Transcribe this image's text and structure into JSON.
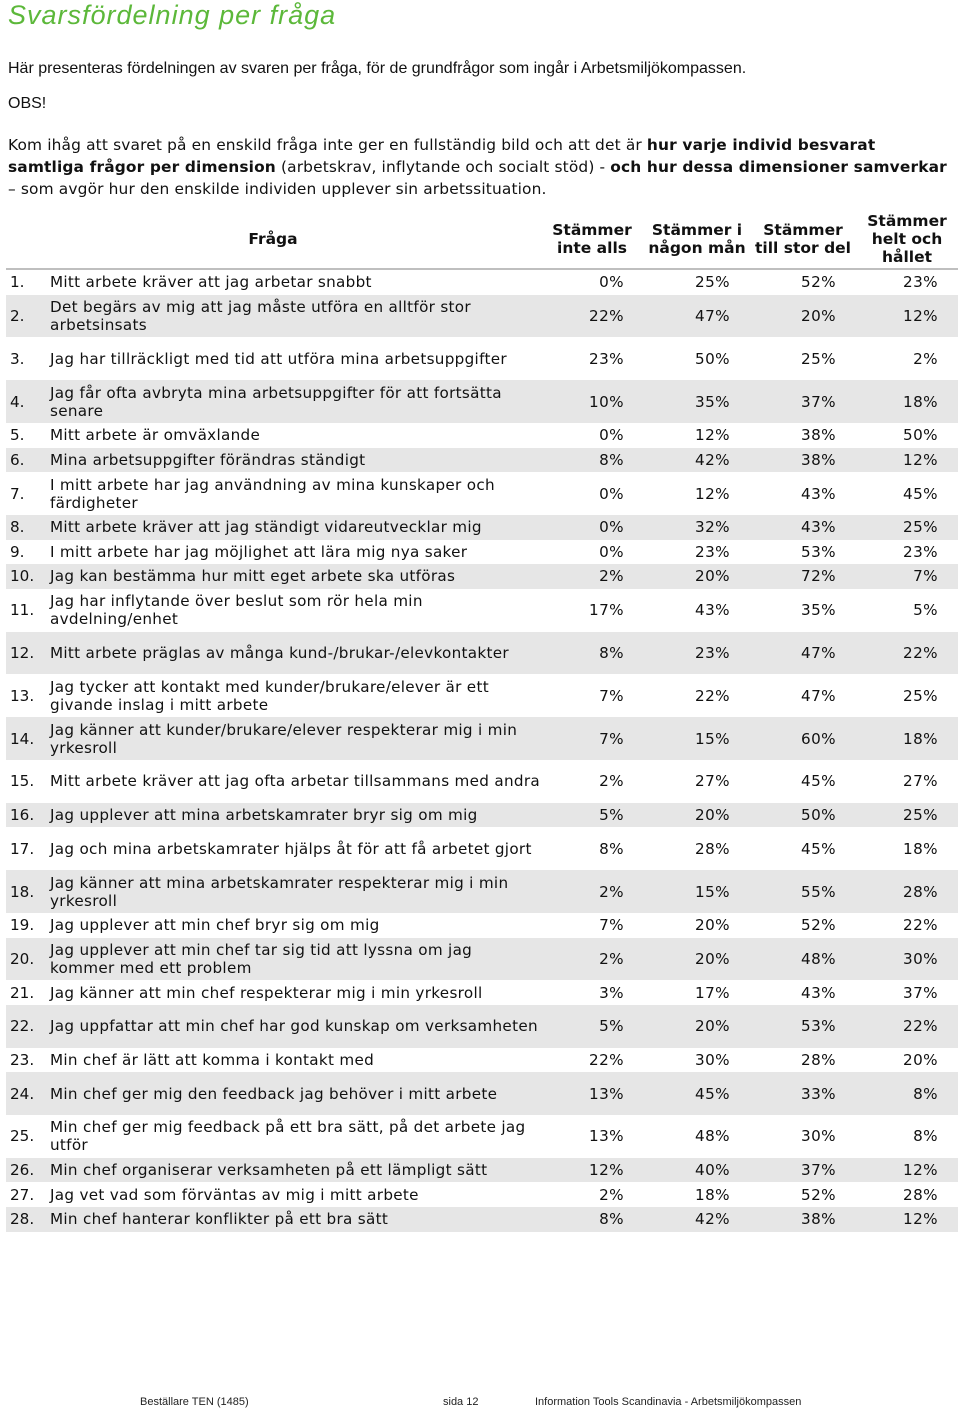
{
  "title": "Svarsfördelning per fråga",
  "intro": "Här presenteras fördelningen av svaren per fråga, för de grundfrågor som ingår i Arbetsmiljökompassen.",
  "obs": "OBS!",
  "note": {
    "p1": "Kom ihåg att svaret på en enskild fråga inte ger en fullständig bild och att det är ",
    "b1": "hur varje individ besvarat samtliga frågor per dimension",
    "p2": " (arbetskrav, inflytande och socialt stöd) - ",
    "b2": "och hur dessa dimensioner samverkar",
    "p3": " – som avgör hur den enskilde individen upplever sin arbetssituation."
  },
  "table": {
    "headers": [
      "Fråga",
      "Stämmer inte alls",
      "Stämmer i någon mån",
      "Stämmer till stor del",
      "Stämmer helt och hållet"
    ],
    "rows": [
      {
        "num": "1.",
        "text": "Mitt arbete kräver att jag arbetar snabbt",
        "v": [
          "0%",
          "25%",
          "52%",
          "23%"
        ]
      },
      {
        "num": "2.",
        "text": "Det begärs av mig att jag måste utföra en alltför stor arbetsinsats",
        "v": [
          "22%",
          "47%",
          "20%",
          "12%"
        ]
      },
      {
        "num": "3.",
        "text": "Jag har tillräckligt med tid att utföra mina arbetsuppgifter",
        "v": [
          "23%",
          "50%",
          "25%",
          "2%"
        ]
      },
      {
        "num": "4.",
        "text": "Jag får ofta avbryta mina arbetsuppgifter för att fortsätta senare",
        "v": [
          "10%",
          "35%",
          "37%",
          "18%"
        ]
      },
      {
        "num": "5.",
        "text": "Mitt arbete är omväxlande",
        "v": [
          "0%",
          "12%",
          "38%",
          "50%"
        ]
      },
      {
        "num": "6.",
        "text": "Mina arbetsuppgifter förändras ständigt",
        "v": [
          "8%",
          "42%",
          "38%",
          "12%"
        ]
      },
      {
        "num": "7.",
        "text": "I mitt arbete har jag användning av mina kunskaper och färdigheter",
        "v": [
          "0%",
          "12%",
          "43%",
          "45%"
        ]
      },
      {
        "num": "8.",
        "text": "Mitt arbete kräver att jag ständigt vidareutvecklar mig",
        "v": [
          "0%",
          "32%",
          "43%",
          "25%"
        ]
      },
      {
        "num": "9.",
        "text": "I mitt arbete har jag möjlighet att lära mig nya saker",
        "v": [
          "0%",
          "23%",
          "53%",
          "23%"
        ]
      },
      {
        "num": "10.",
        "text": "Jag kan bestämma hur mitt eget arbete ska utföras",
        "v": [
          "2%",
          "20%",
          "72%",
          "7%"
        ]
      },
      {
        "num": "11.",
        "text": "Jag har inflytande över beslut som rör hela min avdelning/enhet",
        "v": [
          "17%",
          "43%",
          "35%",
          "5%"
        ]
      },
      {
        "num": "12.",
        "text": "Mitt arbete präglas av många kund-/brukar-/elevkontakter",
        "v": [
          "8%",
          "23%",
          "47%",
          "22%"
        ]
      },
      {
        "num": "13.",
        "text": "Jag tycker att kontakt med kunder/brukare/elever är ett givande inslag i mitt arbete",
        "v": [
          "7%",
          "22%",
          "47%",
          "25%"
        ]
      },
      {
        "num": "14.",
        "text": "Jag känner att kunder/brukare/elever respekterar mig i min yrkesroll",
        "v": [
          "7%",
          "15%",
          "60%",
          "18%"
        ]
      },
      {
        "num": "15.",
        "text": "Mitt arbete kräver att jag ofta arbetar tillsammans med andra",
        "v": [
          "2%",
          "27%",
          "45%",
          "27%"
        ]
      },
      {
        "num": "16.",
        "text": "Jag upplever att mina arbetskamrater bryr sig om mig",
        "v": [
          "5%",
          "20%",
          "50%",
          "25%"
        ]
      },
      {
        "num": "17.",
        "text": "Jag och mina arbetskamrater hjälps åt för att få arbetet gjort",
        "v": [
          "8%",
          "28%",
          "45%",
          "18%"
        ]
      },
      {
        "num": "18.",
        "text": "Jag känner att mina arbetskamrater respekterar mig i min yrkesroll",
        "v": [
          "2%",
          "15%",
          "55%",
          "28%"
        ]
      },
      {
        "num": "19.",
        "text": "Jag upplever att min chef bryr sig om mig",
        "v": [
          "7%",
          "20%",
          "52%",
          "22%"
        ]
      },
      {
        "num": "20.",
        "text": "Jag upplever att min chef tar sig tid att lyssna om jag kommer med ett problem",
        "v": [
          "2%",
          "20%",
          "48%",
          "30%"
        ]
      },
      {
        "num": "21.",
        "text": "Jag känner att min chef respekterar mig i min yrkesroll",
        "v": [
          "3%",
          "17%",
          "43%",
          "37%"
        ]
      },
      {
        "num": "22.",
        "text": "Jag uppfattar att min chef har god kunskap om verksamheten",
        "v": [
          "5%",
          "20%",
          "53%",
          "22%"
        ]
      },
      {
        "num": "23.",
        "text": "Min chef är lätt att komma i kontakt med",
        "v": [
          "22%",
          "30%",
          "28%",
          "20%"
        ]
      },
      {
        "num": "24.",
        "text": "Min chef ger mig den feedback jag behöver i mitt arbete",
        "v": [
          "13%",
          "45%",
          "33%",
          "8%"
        ]
      },
      {
        "num": "25.",
        "text": "Min chef ger mig feedback på ett bra sätt, på det arbete jag utför",
        "v": [
          "13%",
          "48%",
          "30%",
          "8%"
        ]
      },
      {
        "num": "26.",
        "text": "Min chef organiserar verksamheten på ett lämpligt sätt",
        "v": [
          "12%",
          "40%",
          "37%",
          "12%"
        ]
      },
      {
        "num": "27.",
        "text": "Jag vet vad som förväntas av mig i mitt arbete",
        "v": [
          "2%",
          "18%",
          "52%",
          "28%"
        ]
      },
      {
        "num": "28.",
        "text": "Min chef hanterar konflikter på ett bra sätt",
        "v": [
          "8%",
          "42%",
          "38%",
          "12%"
        ]
      }
    ]
  },
  "footer": {
    "left": "Beställare TEN (1485)",
    "center": "sida 12",
    "right": "Information Tools Scandinavia - Arbetsmiljökompassen"
  }
}
